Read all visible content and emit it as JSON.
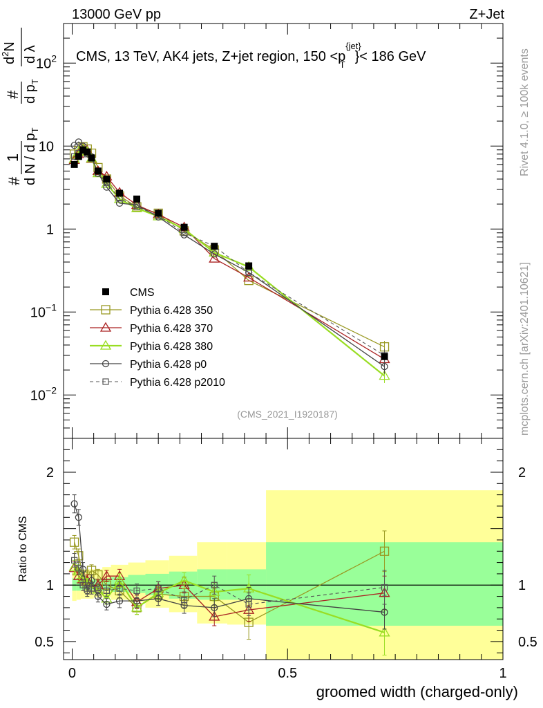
{
  "header": {
    "left": "13000 GeV pp",
    "right": "Z+Jet"
  },
  "side_labels": {
    "right_top": "Rivet 4.1.0, ≥ 100k events",
    "right_bottom": "mcplots.cern.ch [arXiv:2401.10621]"
  },
  "chart_data": {
    "type": "line",
    "title": "CMS, 13 TeV, AK4 jets, Z+jet region, 150 <p",
    "title_sup": "{jet}",
    "title_sub": "T",
    "title_tail": "}< 186 GeV",
    "watermark": "(CMS_2021_I1920187)",
    "xlabel": "groomed width (charged-only)",
    "ylabel_ratio": "Ratio to CMS",
    "xlim": [
      -0.02,
      1.0
    ],
    "ylim_main": [
      0.003,
      300
    ],
    "ylim_ratio": [
      0.34,
      2.3
    ],
    "x_ticks": [
      {
        "v": 0,
        "label": "0"
      },
      {
        "v": 0.5,
        "label": "0.5"
      },
      {
        "v": 1,
        "label": "1"
      }
    ],
    "main_y_ticks": [
      {
        "v": 100,
        "label": "10",
        "sup": "2"
      },
      {
        "v": 10,
        "label": "10",
        "sup": ""
      },
      {
        "v": 1,
        "label": "1",
        "sup": ""
      },
      {
        "v": 0.1,
        "label": "10",
        "sup": "−1"
      },
      {
        "v": 0.01,
        "label": "10",
        "sup": "−2"
      }
    ],
    "ratio_y_ticks": [
      {
        "v": 2,
        "label": "2"
      },
      {
        "v": 1,
        "label": "1"
      },
      {
        "v": 0.5,
        "label": "0.5"
      }
    ],
    "bin_edges": [
      0,
      0.01,
      0.02,
      0.03,
      0.04,
      0.05,
      0.07,
      0.09,
      0.13,
      0.17,
      0.225,
      0.29,
      0.36,
      0.45,
      1.0
    ],
    "x": [
      0.005,
      0.015,
      0.025,
      0.035,
      0.045,
      0.06,
      0.08,
      0.11,
      0.15,
      0.2,
      0.26,
      0.33,
      0.41,
      0.725
    ],
    "data": {
      "name": "CMS",
      "color": "#000000",
      "values": [
        6.0,
        7.5,
        9.0,
        8.5,
        7.2,
        5.0,
        4.0,
        2.7,
        2.3,
        1.55,
        1.05,
        0.62,
        0.36,
        0.029
      ]
    },
    "uncertainty_bands": {
      "inner_color": "#99ff99",
      "outer_color": "#ffff99",
      "inner": [
        [
          0.95,
          1.06
        ],
        [
          0.95,
          1.06
        ],
        [
          0.96,
          1.05
        ],
        [
          0.96,
          1.05
        ],
        [
          0.96,
          1.05
        ],
        [
          0.96,
          1.05
        ],
        [
          0.95,
          1.06
        ],
        [
          0.94,
          1.07
        ],
        [
          0.93,
          1.09
        ],
        [
          0.91,
          1.1
        ],
        [
          0.88,
          1.12
        ],
        [
          0.87,
          1.14
        ],
        [
          0.87,
          1.14
        ],
        [
          0.64,
          1.38
        ]
      ],
      "outer": [
        [
          0.86,
          1.16
        ],
        [
          0.87,
          1.15
        ],
        [
          0.88,
          1.14
        ],
        [
          0.88,
          1.14
        ],
        [
          0.88,
          1.14
        ],
        [
          0.89,
          1.14
        ],
        [
          0.89,
          1.16
        ],
        [
          0.87,
          1.18
        ],
        [
          0.85,
          1.2
        ],
        [
          0.8,
          1.22
        ],
        [
          0.76,
          1.26
        ],
        [
          0.66,
          1.38
        ],
        [
          0.65,
          1.38
        ],
        [
          0.34,
          1.84
        ]
      ]
    },
    "series": [
      {
        "name": "Pythia 6.428 350",
        "color": "#999922",
        "marker": "square",
        "dash": false,
        "width": 1.3,
        "values": [
          8.0,
          8.8,
          9.8,
          9.2,
          8.2,
          5.5,
          4.0,
          2.5,
          1.85,
          1.55,
          0.95,
          0.56,
          0.24,
          0.038
        ],
        "ratio": [
          1.38,
          1.26,
          1.08,
          1.08,
          1.13,
          1.09,
          1.0,
          0.95,
          0.8,
          0.92,
          0.9,
          0.9,
          0.67,
          1.3
        ],
        "err": [
          0.06,
          0.06,
          0.05,
          0.05,
          0.05,
          0.05,
          0.05,
          0.06,
          0.06,
          0.06,
          0.07,
          0.08,
          0.15,
          0.18
        ]
      },
      {
        "name": "Pythia 6.428 370",
        "color": "#aa2222",
        "marker": "triangle",
        "dash": false,
        "width": 1.3,
        "values": [
          6.8,
          8.0,
          9.5,
          8.8,
          7.0,
          5.0,
          4.3,
          2.75,
          1.95,
          1.5,
          1.05,
          0.44,
          0.26,
          0.027
        ],
        "ratio": [
          1.15,
          1.08,
          1.05,
          1.04,
          0.98,
          1.0,
          1.08,
          1.08,
          0.85,
          0.97,
          1.0,
          0.72,
          0.78,
          0.93
        ],
        "err": [
          0.06,
          0.06,
          0.05,
          0.05,
          0.05,
          0.05,
          0.05,
          0.06,
          0.06,
          0.06,
          0.07,
          0.08,
          0.1,
          0.15
        ]
      },
      {
        "name": "Pythia 6.428 380",
        "color": "#99dd22",
        "marker": "triangle",
        "dash": false,
        "width": 2.2,
        "values": [
          7.0,
          8.5,
          9.3,
          8.6,
          7.1,
          4.7,
          3.5,
          2.3,
          1.78,
          1.42,
          1.0,
          0.52,
          0.35,
          0.017
        ],
        "ratio": [
          1.16,
          1.12,
          1.06,
          1.01,
          0.98,
          0.96,
          0.88,
          1.04,
          0.8,
          0.93,
          1.04,
          0.94,
          0.97,
          0.58
        ],
        "err": [
          0.06,
          0.06,
          0.05,
          0.05,
          0.05,
          0.05,
          0.05,
          0.06,
          0.06,
          0.06,
          0.07,
          0.08,
          0.12,
          0.2
        ]
      },
      {
        "name": "Pythia 6.428 p0",
        "color": "#444444",
        "marker": "circle",
        "dash": false,
        "width": 1.3,
        "values": [
          10.2,
          11.2,
          10.0,
          8.2,
          7.4,
          4.7,
          3.2,
          2.05,
          1.95,
          1.4,
          0.85,
          0.5,
          0.3,
          0.022
        ],
        "ratio": [
          1.72,
          1.6,
          1.14,
          0.95,
          1.04,
          0.9,
          0.83,
          0.86,
          0.86,
          0.88,
          0.82,
          0.8,
          0.88,
          0.76
        ],
        "err": [
          0.08,
          0.07,
          0.06,
          0.05,
          0.05,
          0.05,
          0.05,
          0.06,
          0.06,
          0.06,
          0.07,
          0.08,
          0.1,
          0.15
        ]
      },
      {
        "name": "Pythia 6.428 p2010",
        "color": "#555555",
        "marker": "square-small",
        "dash": true,
        "width": 1.1,
        "values": [
          7.5,
          8.2,
          8.8,
          8.0,
          7.1,
          4.7,
          3.6,
          2.35,
          1.85,
          1.45,
          0.9,
          0.62,
          0.3,
          0.03
        ],
        "ratio": [
          1.22,
          1.15,
          1.0,
          0.97,
          0.97,
          0.96,
          0.95,
          0.97,
          0.95,
          0.97,
          0.87,
          1.0,
          0.83,
          0.98
        ],
        "err": [
          0.06,
          0.06,
          0.05,
          0.05,
          0.05,
          0.05,
          0.05,
          0.06,
          0.06,
          0.06,
          0.07,
          0.08,
          0.1,
          0.15
        ]
      }
    ]
  }
}
